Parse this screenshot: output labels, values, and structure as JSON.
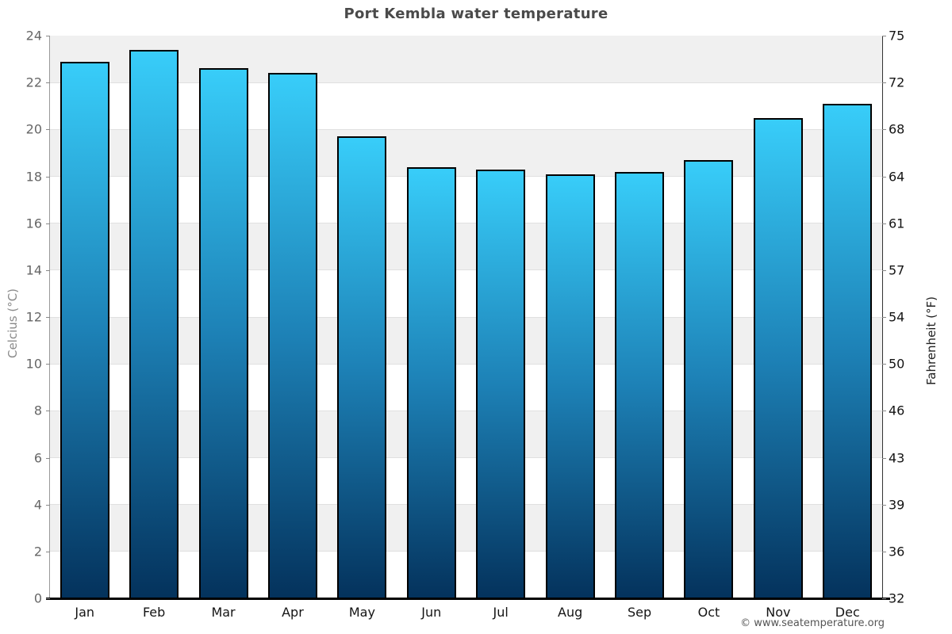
{
  "title": "Port Kembla water temperature",
  "footer": "© www.seatemperature.org",
  "axes": {
    "left_label": "Celcius (°C)",
    "right_label": "Fahrenheit (°F)",
    "left_ticks": [
      "24",
      "22",
      "20",
      "18",
      "16",
      "14",
      "12",
      "10",
      "8",
      "6",
      "4",
      "2",
      "0"
    ],
    "right_ticks": [
      "75",
      "72",
      "68",
      "64",
      "61",
      "57",
      "54",
      "50",
      "46",
      "43",
      "39",
      "36",
      "32"
    ]
  },
  "chart_data": {
    "type": "bar",
    "title": "Port Kembla water temperature",
    "categories": [
      "Jan",
      "Feb",
      "Mar",
      "Apr",
      "May",
      "Jun",
      "Jul",
      "Aug",
      "Sep",
      "Oct",
      "Nov",
      "Dec"
    ],
    "values": [
      22.9,
      23.4,
      22.6,
      22.4,
      19.7,
      18.4,
      18.3,
      18.1,
      18.2,
      18.7,
      20.5,
      21.1
    ],
    "unit": "°C",
    "xlabel": "",
    "ylabel": "Celcius (°C)",
    "y2label": "Fahrenheit (°F)",
    "ylim": [
      0,
      24
    ],
    "y2lim": [
      32,
      75
    ],
    "grid": "horizontal-bands",
    "legend_position": "none",
    "colors": {
      "bar_top": "#38CDF9",
      "bar_mid": "#1D81B6",
      "bar_bottom": "#04325C",
      "bar_border": "#000000",
      "band": "#F0F0F0",
      "gridline": "#E0E0E0",
      "tick_mark": "#888888"
    }
  }
}
